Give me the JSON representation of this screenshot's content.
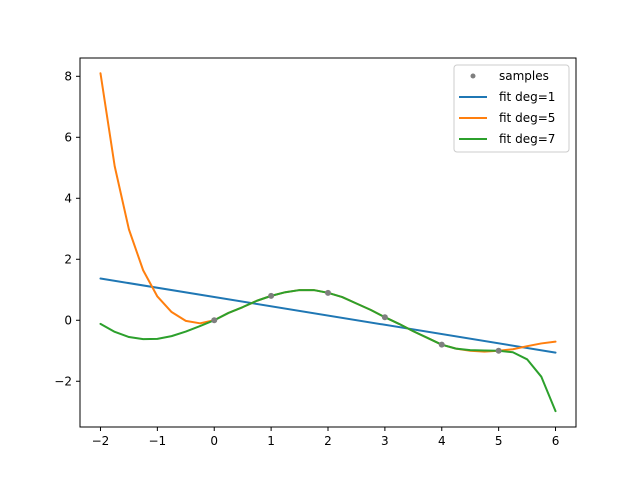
{
  "chart_data": {
    "type": "line",
    "title": "",
    "xlabel": "",
    "ylabel": "",
    "xlim": [
      -2.36,
      6.36
    ],
    "ylim": [
      -3.5,
      8.6
    ],
    "xticks": [
      -2,
      -1,
      0,
      1,
      2,
      3,
      4,
      5,
      6
    ],
    "xtick_labels": [
      "−2",
      "−1",
      "0",
      "1",
      "2",
      "3",
      "4",
      "5",
      "6"
    ],
    "yticks": [
      -2,
      0,
      2,
      4,
      6,
      8
    ],
    "ytick_labels": [
      "−2",
      "0",
      "2",
      "4",
      "6",
      "8"
    ],
    "grid": false,
    "legend_position": "top-right",
    "samples": {
      "name": "samples",
      "color": "#7f7f7f",
      "x": [
        0,
        1,
        2,
        3,
        4,
        5
      ],
      "y": [
        0,
        0.8,
        0.9,
        0.1,
        -0.8,
        -1.0
      ]
    },
    "series": [
      {
        "name": "fit deg=1",
        "color": "#1f77b4",
        "x": [
          -2,
          6
        ],
        "y": [
          1.37,
          -1.06
        ]
      },
      {
        "name": "fit deg=5",
        "color": "#ff7f0e",
        "x": [
          -2,
          -1.75,
          -1.5,
          -1.25,
          -1,
          -0.75,
          -0.5,
          -0.25,
          0,
          0.25,
          0.5,
          0.75,
          1,
          1.25,
          1.5,
          1.75,
          2,
          2.25,
          2.5,
          2.75,
          3,
          3.25,
          3.5,
          3.75,
          4,
          4.25,
          4.5,
          4.75,
          5,
          5.25,
          5.5,
          5.75,
          6
        ],
        "y": [
          8.1,
          5.05,
          2.98,
          1.64,
          0.78,
          0.27,
          -0.02,
          -0.1,
          0.0,
          0.24,
          0.43,
          0.64,
          0.8,
          0.92,
          0.99,
          0.99,
          0.9,
          0.76,
          0.55,
          0.34,
          0.1,
          -0.12,
          -0.36,
          -0.58,
          -0.8,
          -0.93,
          -1.0,
          -1.03,
          -1.0,
          -0.95,
          -0.85,
          -0.76,
          -0.7
        ]
      },
      {
        "name": "fit deg=7",
        "color": "#2ca02c",
        "x": [
          -2,
          -1.75,
          -1.5,
          -1.25,
          -1,
          -0.75,
          -0.5,
          -0.25,
          0,
          0.25,
          0.5,
          0.75,
          1,
          1.25,
          1.5,
          1.75,
          2,
          2.25,
          2.5,
          2.75,
          3,
          3.25,
          3.5,
          3.75,
          4,
          4.25,
          4.5,
          4.75,
          5,
          5.25,
          5.5,
          5.75,
          6
        ],
        "y": [
          -0.12,
          -0.38,
          -0.55,
          -0.62,
          -0.61,
          -0.52,
          -0.37,
          -0.19,
          0.0,
          0.24,
          0.43,
          0.64,
          0.8,
          0.92,
          0.99,
          0.99,
          0.9,
          0.76,
          0.55,
          0.34,
          0.1,
          -0.12,
          -0.36,
          -0.58,
          -0.8,
          -0.93,
          -0.98,
          -0.99,
          -1.0,
          -1.05,
          -1.28,
          -1.85,
          -2.98
        ]
      }
    ]
  }
}
